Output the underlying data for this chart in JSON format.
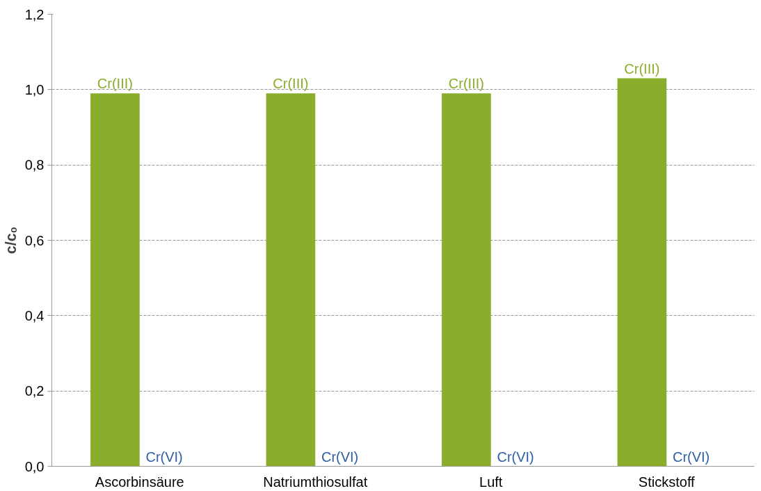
{
  "chart_data": {
    "type": "bar",
    "ylabel": "c/c₀",
    "categories": [
      "Ascorbinsäure",
      "Natriumthiosulfat",
      "Luft",
      "Stickstoff"
    ],
    "series": [
      {
        "name": "Cr(III)",
        "color": "#8aae2b",
        "values": [
          0.99,
          0.99,
          0.99,
          1.03
        ]
      },
      {
        "name": "Cr(VI)",
        "color": "#2e5fa8",
        "values": [
          0.0,
          0.0,
          0.0,
          0.0
        ]
      }
    ],
    "ylim": [
      0,
      1.2
    ],
    "yticks": [
      {
        "value": 0,
        "label": "0,0"
      },
      {
        "value": 0.2,
        "label": "0,2"
      },
      {
        "value": 0.4,
        "label": "0,4"
      },
      {
        "value": 0.6,
        "label": "0,6"
      },
      {
        "value": 0.8,
        "label": "0,8"
      },
      {
        "value": 1.0,
        "label": "1,0"
      },
      {
        "value": 1.2,
        "label": "1,2"
      }
    ],
    "grid": "y"
  }
}
